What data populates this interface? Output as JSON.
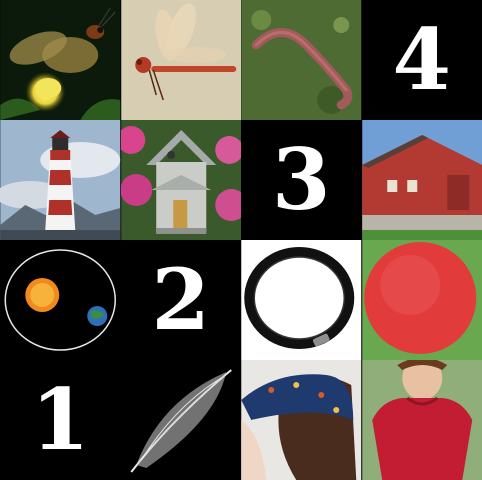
{
  "grid": {
    "rows": [
      [
        {
          "type": "image",
          "icon": "firefly-icon"
        },
        {
          "type": "image",
          "icon": "dragonfly-icon"
        },
        {
          "type": "image",
          "icon": "earthworm-icon"
        },
        {
          "type": "number",
          "value": "4"
        }
      ],
      [
        {
          "type": "image",
          "icon": "lighthouse-icon"
        },
        {
          "type": "image",
          "icon": "birdhouse-icon"
        },
        {
          "type": "number",
          "value": "3"
        },
        {
          "type": "image",
          "icon": "red-barn-icon"
        }
      ],
      [
        {
          "type": "image",
          "icon": "earth-orbit-sun-icon"
        },
        {
          "type": "number",
          "value": "2"
        },
        {
          "type": "image",
          "icon": "hair-tie-icon"
        },
        {
          "type": "image",
          "icon": "red-ball-icon"
        }
      ],
      [
        {
          "type": "number",
          "value": "1"
        },
        {
          "type": "image",
          "icon": "feather-icon"
        },
        {
          "type": "image",
          "icon": "bandana-icon"
        },
        {
          "type": "image",
          "icon": "red-tshirt-icon"
        }
      ]
    ]
  },
  "colors": {
    "background": "#000000",
    "number_text": "#ffffff",
    "barn_red": "#b23a33",
    "ball_red": "#e23b3b",
    "shirt_red": "#c21d32"
  }
}
